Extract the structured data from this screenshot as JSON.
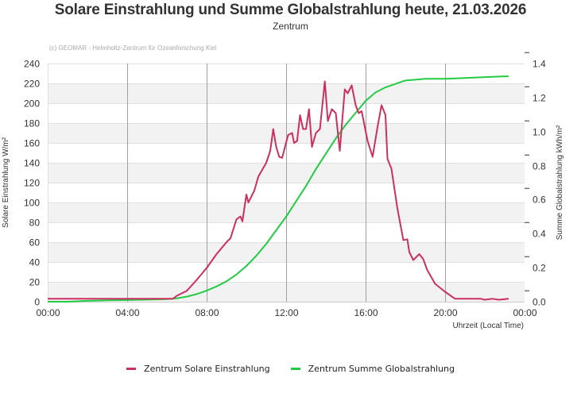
{
  "header": {
    "title": "Solare Einstrahlung und Summe Globalstrahlung heute, 21.03.2026",
    "subtitle": "Zentrum",
    "credit": "(c) GEOMAR - Helmholtz-Zentrum für Ozeanforschung Kiel"
  },
  "colors": {
    "solar": "#cc3060",
    "global": "#22cc44",
    "band": "#f2f2f2",
    "grid": "#e0e0e0",
    "vgrid": "#a0a0a0"
  },
  "legend": [
    {
      "label": "Zentrum Solare Einstrahlung",
      "color": "#cc3060"
    },
    {
      "label": "Zentrum Summe Globalstrahlung",
      "color": "#22cc44"
    }
  ],
  "chart_data": {
    "type": "line",
    "title": "Solare Einstrahlung und Summe Globalstrahlung heute, 21.03.2026",
    "subtitle": "Zentrum",
    "xlabel": "Uhrzeit (Local Time)",
    "ylabel": "Solare Einstrahlung W/m²",
    "y2label": "Summe Globalstrahlung kWh/m²",
    "xlim": [
      0,
      24
    ],
    "ylim": [
      0,
      240
    ],
    "y2lim": [
      0,
      1.4
    ],
    "x_ticks": [
      "00:00",
      "04:00",
      "08:00",
      "12:00",
      "16:00",
      "20:00",
      "00:00"
    ],
    "y_ticks": [
      0,
      20,
      40,
      60,
      80,
      100,
      120,
      140,
      160,
      180,
      200,
      220,
      240
    ],
    "y2_ticks": [
      "0.0",
      "0.2",
      "0.4",
      "0.6",
      "0.8",
      "1.0",
      "1.2",
      "1.4"
    ],
    "grid": true,
    "legend_position": "bottom",
    "series": [
      {
        "name": "Zentrum Solare Einstrahlung",
        "axis": "left",
        "color": "#cc3060",
        "x": [
          0,
          2,
          4,
          6,
          6.3,
          6.5,
          7,
          7.5,
          8,
          8.5,
          9,
          9.2,
          9.5,
          9.7,
          9.8,
          10,
          10.1,
          10.4,
          10.6,
          11,
          11.2,
          11.35,
          11.5,
          11.65,
          11.8,
          12.1,
          12.3,
          12.4,
          12.55,
          12.7,
          12.85,
          13,
          13.15,
          13.3,
          13.5,
          13.7,
          13.95,
          14.1,
          14.3,
          14.5,
          14.7,
          14.95,
          15.1,
          15.3,
          15.5,
          15.65,
          15.8,
          16.1,
          16.35,
          16.6,
          16.8,
          17.0,
          17.1,
          17.3,
          17.6,
          17.9,
          18.1,
          18.2,
          18.4,
          18.7,
          18.9,
          19.1,
          19.5,
          20,
          20.5,
          21,
          21.8,
          22.0,
          22.4,
          22.7,
          23.2
        ],
        "values": [
          3,
          3,
          3,
          3,
          3,
          6,
          11,
          22,
          34,
          48,
          60,
          64,
          83,
          86,
          81,
          108,
          100,
          112,
          126,
          140,
          152,
          174,
          156,
          146,
          145,
          168,
          170,
          160,
          162,
          188,
          174,
          174,
          194,
          156,
          170,
          174,
          222,
          182,
          194,
          190,
          152,
          214,
          210,
          218,
          198,
          190,
          192,
          162,
          146,
          176,
          198,
          188,
          144,
          134,
          94,
          62,
          63,
          50,
          42,
          48,
          43,
          32,
          18,
          10,
          3,
          3,
          3,
          2,
          3,
          2,
          3
        ]
      },
      {
        "name": "Zentrum Summe Globalstrahlung",
        "axis": "right",
        "color": "#22cc44",
        "x": [
          0,
          1,
          2,
          3,
          4,
          5,
          6,
          6.5,
          7,
          7.5,
          8,
          8.5,
          9,
          9.5,
          10,
          10.5,
          11,
          11.5,
          12,
          12.5,
          13,
          13.5,
          14,
          14.5,
          15,
          15.5,
          16,
          16.5,
          17,
          17.5,
          18,
          18.5,
          19,
          20,
          21,
          22,
          23,
          23.2
        ],
        "values": [
          0.0,
          0.0,
          0.005,
          0.008,
          0.01,
          0.012,
          0.015,
          0.02,
          0.03,
          0.045,
          0.065,
          0.09,
          0.12,
          0.16,
          0.21,
          0.27,
          0.34,
          0.42,
          0.5,
          0.59,
          0.68,
          0.78,
          0.87,
          0.96,
          1.04,
          1.11,
          1.18,
          1.23,
          1.26,
          1.28,
          1.3,
          1.305,
          1.31,
          1.31,
          1.315,
          1.32,
          1.325,
          1.325
        ]
      }
    ]
  }
}
